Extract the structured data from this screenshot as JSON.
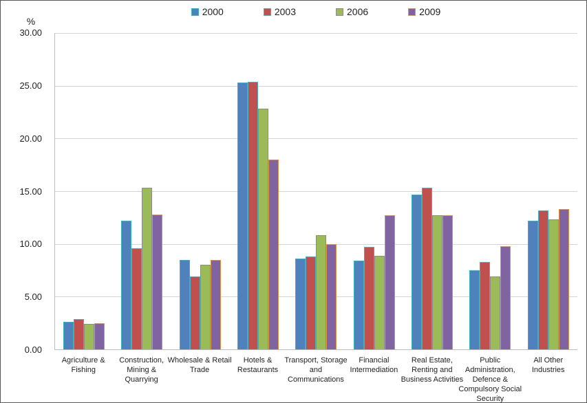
{
  "chart_data": {
    "type": "bar",
    "title": "",
    "ylabel": "%",
    "xlabel": "",
    "ylim": [
      0,
      30
    ],
    "yticks": [
      0,
      5,
      10,
      15,
      20,
      25,
      30
    ],
    "ytick_labels": [
      "0.00",
      "5.00",
      "10.00",
      "15.00",
      "20.00",
      "25.00",
      "30.00"
    ],
    "grid": true,
    "legend_position": "top-center",
    "categories": [
      "Agriculture &\nFishing",
      "Construction,\nMining &\nQuarrying",
      "Wholesale & Retail\nTrade",
      "Hotels &\nRestaurants",
      "Transport, Storage\nand\nCommunications",
      "Financial\nIntermediation",
      "Real Estate,\nRenting and\nBusiness Activities",
      "Public\nAdministration,\nDefence &\nCompulsory Social\nSecurity",
      "All Other\nIndustries"
    ],
    "series": [
      {
        "name": "2000",
        "color": "#4F81BD",
        "border_color": "#36B2B9",
        "values": [
          2.6,
          12.2,
          8.5,
          25.3,
          8.6,
          8.4,
          14.7,
          7.5,
          12.2
        ]
      },
      {
        "name": "2003",
        "color": "#C0504D",
        "border_color": "#4BACC6",
        "values": [
          2.9,
          9.6,
          6.9,
          25.4,
          8.8,
          9.7,
          15.3,
          8.3,
          13.2
        ]
      },
      {
        "name": "2006",
        "color": "#9BBB59",
        "border_color": "#8C8C8C",
        "values": [
          2.4,
          15.3,
          8.0,
          22.8,
          10.8,
          8.9,
          12.7,
          6.9,
          12.3
        ]
      },
      {
        "name": "2009",
        "color": "#8064A2",
        "border_color": "#E09440",
        "values": [
          2.5,
          12.8,
          8.5,
          18.0,
          10.0,
          12.7,
          12.7,
          9.8,
          13.3
        ]
      }
    ]
  },
  "colors": {
    "gridline": "#d4d4d4",
    "axis": "#bdbdbd",
    "text": "#1f1f1f"
  }
}
